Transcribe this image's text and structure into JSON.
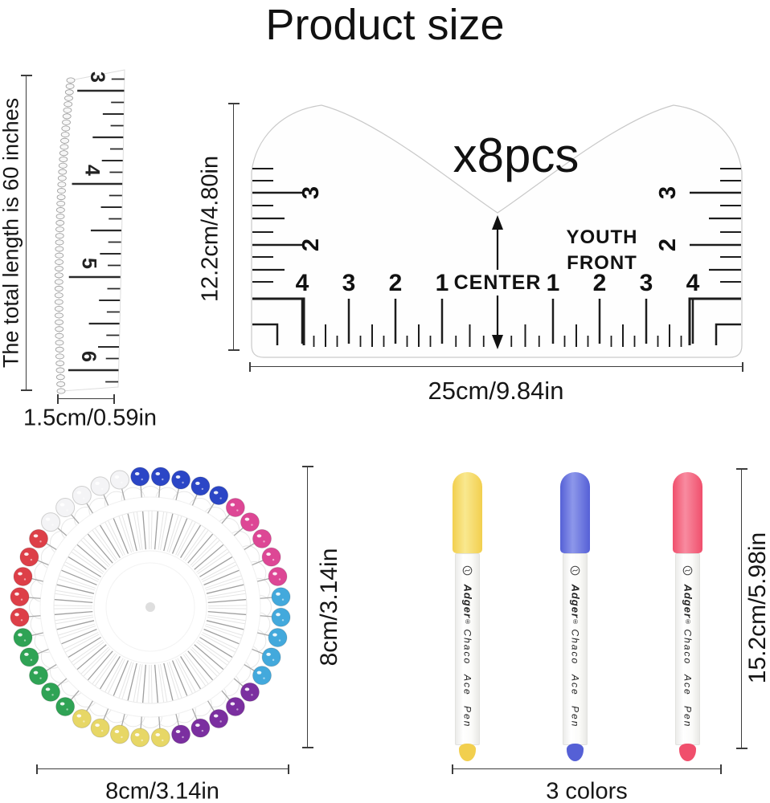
{
  "title": "Product size",
  "tape_measure": {
    "vertical_label": "The total length is 60 inches",
    "width_label": "1.5cm/0.59in",
    "numbers": [
      "3",
      "4",
      "5",
      "6"
    ]
  },
  "tshirt_ruler": {
    "quantity_label": "x8pcs",
    "height_label": "12.2cm/4.80in",
    "width_label": "25cm/9.84in",
    "youth_line1": "YOUTH",
    "youth_line2": "FRONT",
    "center_label": "CENTER",
    "side_scale": [
      "3",
      "2"
    ],
    "bottom_scale_left": [
      "4",
      "3",
      "2",
      "1"
    ],
    "bottom_scale_right": [
      "1",
      "2",
      "3",
      "4"
    ]
  },
  "pin_wheel": {
    "height_label": "8cm/3.14in",
    "width_label": "8cm/3.14in",
    "total_pins": 40,
    "pins_per_color": 5,
    "pin_colors": [
      {
        "name": "blue",
        "hex": "#2b46c6"
      },
      {
        "name": "pink",
        "hex": "#dd4795"
      },
      {
        "name": "cyan",
        "hex": "#43a9dc"
      },
      {
        "name": "purple",
        "hex": "#7b2fa0"
      },
      {
        "name": "yellow",
        "hex": "#e7d766"
      },
      {
        "name": "green",
        "hex": "#2fa355"
      },
      {
        "name": "red",
        "hex": "#dd3f48"
      },
      {
        "name": "white",
        "hex": "#f4f4f6"
      }
    ]
  },
  "marker_pens": {
    "height_label": "15.2cm/5.98in",
    "count_label": "3 colors",
    "brand": "Adger",
    "brand_reg": "®",
    "pen_text": "Chaco Ace Pen",
    "cap_colors": [
      {
        "name": "yellow",
        "hex": "#f2cf4e",
        "light": "#f9e88f"
      },
      {
        "name": "blue",
        "hex": "#5560d6",
        "light": "#8d97ea"
      },
      {
        "name": "red",
        "hex": "#f04f6c",
        "light": "#f88ba0"
      }
    ]
  }
}
